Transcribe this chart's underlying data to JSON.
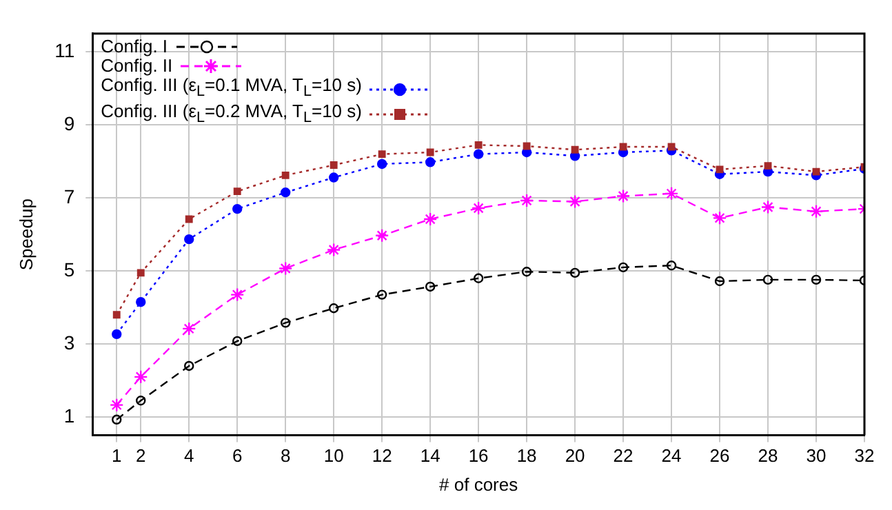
{
  "chart_data": {
    "type": "line",
    "xlabel": "# of cores",
    "ylabel": "Speedup",
    "x": [
      1,
      2,
      4,
      6,
      8,
      10,
      12,
      14,
      16,
      18,
      20,
      22,
      24,
      26,
      28,
      30,
      32
    ],
    "series": [
      {
        "name": "Config. I",
        "color": "#000000",
        "marker": "circle",
        "line_style": "dashed",
        "values": [
          0.93,
          1.45,
          2.4,
          3.08,
          3.58,
          3.98,
          4.35,
          4.57,
          4.8,
          4.98,
          4.95,
          5.1,
          5.15,
          4.72,
          4.76,
          4.76,
          4.74
        ]
      },
      {
        "name": "Config. II",
        "color": "#ff00ff",
        "marker": "cross",
        "line_style": "dashed",
        "values": [
          1.33,
          2.1,
          3.42,
          4.35,
          5.07,
          5.58,
          5.97,
          6.42,
          6.72,
          6.93,
          6.9,
          7.05,
          7.12,
          6.45,
          6.75,
          6.63,
          6.7
        ]
      },
      {
        "name": "Config. III (ε$_{L}$=0.1 MVA, T$_{L}$=10 s)",
        "color": "#0000ff",
        "marker": "circle",
        "line_style": "dotted",
        "values": [
          3.27,
          4.15,
          5.87,
          6.7,
          7.15,
          7.56,
          7.93,
          7.98,
          8.2,
          8.25,
          8.15,
          8.25,
          8.3,
          7.65,
          7.72,
          7.62,
          7.8
        ]
      },
      {
        "name": "Config. III (ε$_{L}$=0.2 MVA, T$_{L}$=10 s)",
        "color": "#a52a2a",
        "marker": "square",
        "line_style": "dotted",
        "values": [
          3.8,
          4.95,
          6.42,
          7.18,
          7.62,
          7.9,
          8.2,
          8.25,
          8.45,
          8.42,
          8.32,
          8.4,
          8.4,
          7.78,
          7.88,
          7.72,
          7.85
        ]
      }
    ],
    "xlim": [
      0,
      32
    ],
    "xticks": [
      1,
      2,
      4,
      6,
      8,
      10,
      12,
      14,
      16,
      18,
      20,
      22,
      24,
      26,
      28,
      30,
      32
    ],
    "ylim": [
      0.5,
      11.5
    ],
    "yticks": [
      1,
      3,
      5,
      7,
      9,
      11
    ],
    "grid": true,
    "legend": "top left"
  }
}
